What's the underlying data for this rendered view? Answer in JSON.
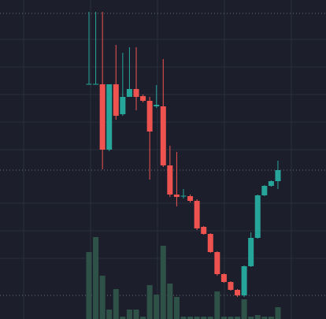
{
  "chart_data": {
    "type": "candlestick",
    "ylim": [
      0,
      405
    ],
    "volume_lim": [
      0,
      405
    ],
    "up_color": "#26a69a",
    "down_color": "#ef5350",
    "volume_color": "#2e5248",
    "candles": [
      {
        "open": 298,
        "high": 390,
        "low": 298,
        "close": 298,
        "volume": 85
      },
      {
        "open": 298,
        "high": 390,
        "low": 298,
        "close": 298,
        "volume": 104
      },
      {
        "open": 298,
        "high": 390,
        "low": 190,
        "close": 215,
        "volume": 55
      },
      {
        "open": 215,
        "high": 298,
        "low": 213,
        "close": 298,
        "volume": 12
      },
      {
        "open": 298,
        "high": 348,
        "low": 253,
        "close": 258,
        "volume": 38
      },
      {
        "open": 260,
        "high": 338,
        "low": 258,
        "close": 282,
        "volume": 3
      },
      {
        "open": 282,
        "high": 345,
        "low": 282,
        "close": 292,
        "volume": 12
      },
      {
        "open": 292,
        "high": 345,
        "low": 265,
        "close": 282,
        "volume": 12
      },
      {
        "open": 283,
        "high": 285,
        "low": 275,
        "close": 277,
        "volume": 3
      },
      {
        "open": 277,
        "high": 282,
        "low": 177,
        "close": 238,
        "volume": 43
      },
      {
        "open": 270,
        "high": 297,
        "low": 268,
        "close": 272,
        "volume": 31
      },
      {
        "open": 270,
        "high": 330,
        "low": 193,
        "close": 195,
        "volume": 93
      },
      {
        "open": 195,
        "high": 220,
        "low": 155,
        "close": 158,
        "volume": 45
      },
      {
        "open": 158,
        "high": 212,
        "low": 143,
        "close": 155,
        "volume": 28
      },
      {
        "open": 156,
        "high": 165,
        "low": 153,
        "close": 156,
        "volume": 3
      },
      {
        "open": 156,
        "high": 158,
        "low": 148,
        "close": 150,
        "volume": 3
      },
      {
        "open": 150,
        "high": 152,
        "low": 113,
        "close": 115,
        "volume": 3
      },
      {
        "open": 117,
        "high": 118,
        "low": 107,
        "close": 108,
        "volume": 3
      },
      {
        "open": 108,
        "high": 109,
        "low": 84,
        "close": 85,
        "volume": 3
      },
      {
        "open": 85,
        "high": 86,
        "low": 55,
        "close": 57,
        "volume": 35
      },
      {
        "open": 57,
        "high": 58,
        "low": 46,
        "close": 47,
        "volume": 3
      },
      {
        "open": 47,
        "high": 48,
        "low": 36,
        "close": 37,
        "volume": 3
      },
      {
        "open": 37,
        "high": 38,
        "low": 28,
        "close": 30,
        "volume": 3
      },
      {
        "open": 30,
        "high": 68,
        "low": 28,
        "close": 67,
        "volume": 25
      },
      {
        "open": 67,
        "high": 110,
        "low": 66,
        "close": 103,
        "volume": 3
      },
      {
        "open": 103,
        "high": 158,
        "low": 102,
        "close": 157,
        "volume": 5
      },
      {
        "open": 157,
        "high": 170,
        "low": 156,
        "close": 169,
        "volume": 3
      },
      {
        "open": 169,
        "high": 176,
        "low": 168,
        "close": 175,
        "volume": 3
      },
      {
        "open": 175,
        "high": 201,
        "low": 165,
        "close": 189,
        "volume": 15
      }
    ]
  }
}
